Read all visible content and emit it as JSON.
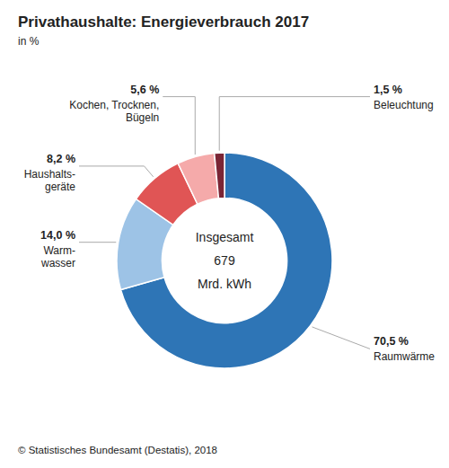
{
  "chart_data": {
    "type": "donut",
    "title": "Privathaushalte: Energieverbrauch 2017",
    "subtitle": "in %",
    "annotations": [
      "Insgesamt",
      "679",
      "Mrd. kWh"
    ],
    "footer": "© Statistisches Bundesamt (Destatis), 2018",
    "categories": [
      "Raumwärme",
      "Warm-\nwasser",
      "Haushalts-\ngeräte",
      "Kochen, Trocknen,\nBügeln",
      "Beleuchtung"
    ],
    "values": [
      70.5,
      14.0,
      8.2,
      5.6,
      1.5
    ],
    "value_labels": [
      "70,5 %",
      "14,0 %",
      "8,2 %",
      "5,6 %",
      "1,5 %"
    ],
    "colors": [
      "#2e75b6",
      "#9dc3e6",
      "#e05555",
      "#f5aaaa",
      "#7b2535"
    ],
    "data_labels": true
  }
}
